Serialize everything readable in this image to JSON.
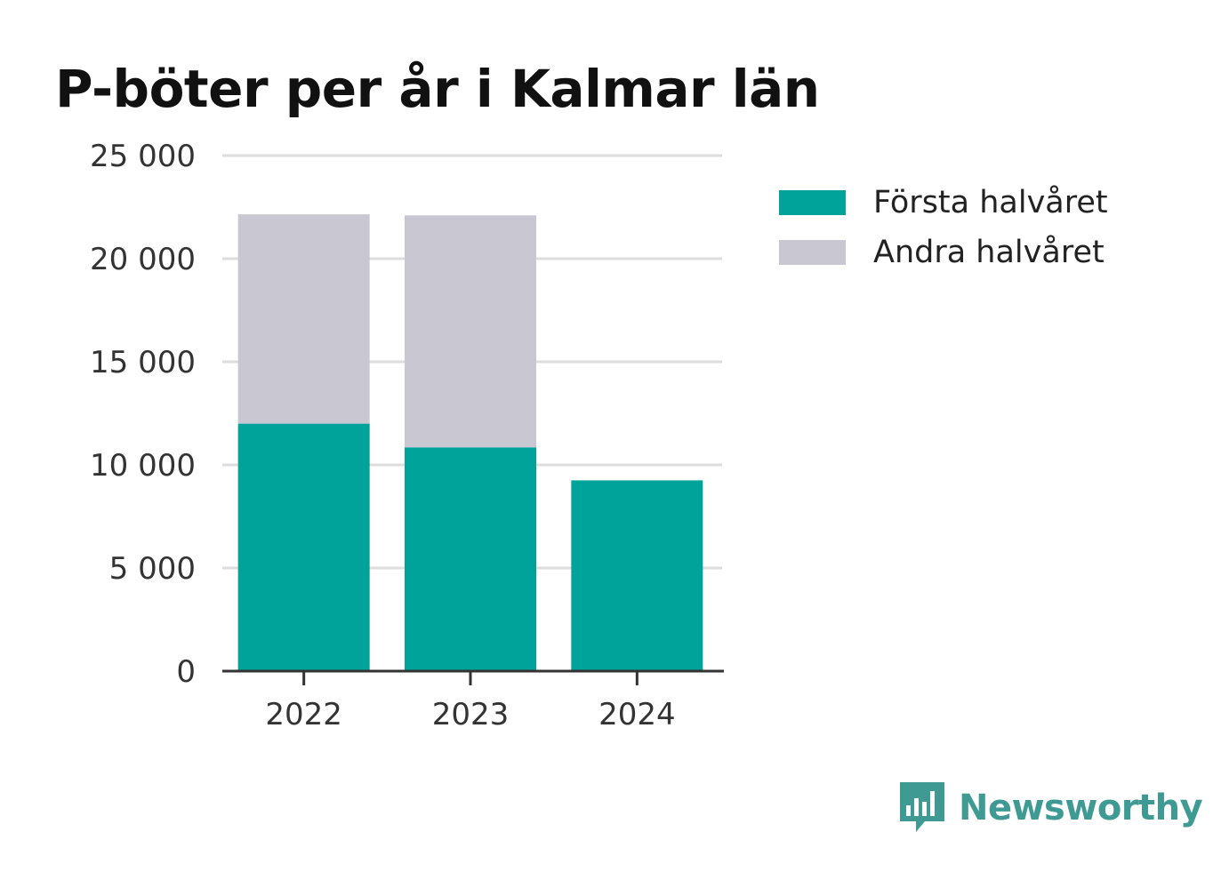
{
  "title": "P-böter per år i Kalmar län",
  "colors": {
    "first_half": "#00a39a",
    "second_half": "#c8c7d2",
    "grid": "#dddddd",
    "axis": "#333333",
    "brand": "#3f9a93"
  },
  "brand": {
    "name": "Newsworthy",
    "icon": "bar-chart-speech-bubble-icon"
  },
  "chart_data": {
    "type": "bar",
    "stacked": true,
    "categories": [
      "2022",
      "2023",
      "2024"
    ],
    "series": [
      {
        "name": "Första halvåret",
        "values": [
          12000,
          10850,
          9250
        ]
      },
      {
        "name": "Andra halvåret",
        "values": [
          10150,
          11250,
          0
        ]
      }
    ],
    "title": "P-böter per år i Kalmar län",
    "xlabel": "",
    "ylabel": "",
    "ylim": [
      0,
      25000
    ],
    "yticks": [
      0,
      5000,
      10000,
      15000,
      20000,
      25000
    ],
    "ytick_labels": [
      "0",
      "5 000",
      "10 000",
      "15 000",
      "20 000",
      "25 000"
    ],
    "grid": true,
    "legend_position": "top-right"
  }
}
